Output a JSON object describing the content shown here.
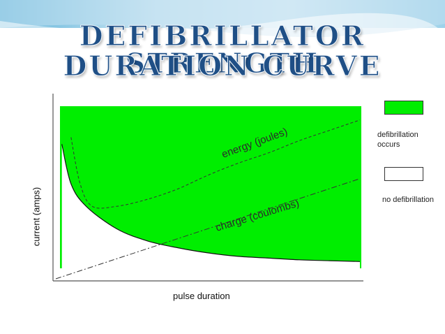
{
  "title": {
    "line1": "DEFIBRILLATOR STRENGTH",
    "line2": "DURATION CURVE"
  },
  "chart_data": {
    "type": "area",
    "xlabel": "pulse duration",
    "ylabel": "current (amps)",
    "region_fill": "#00ee00",
    "curves": [
      {
        "name": "strength-duration",
        "style": "solid",
        "x": [
          0.02,
          0.05,
          0.1,
          0.2,
          0.3,
          0.4,
          0.5,
          0.6,
          0.7,
          0.8,
          0.9,
          1.0
        ],
        "y": [
          0.78,
          0.55,
          0.42,
          0.29,
          0.22,
          0.18,
          0.15,
          0.13,
          0.12,
          0.11,
          0.105,
          0.1
        ]
      },
      {
        "name": "energy",
        "label": "energy (joules)",
        "style": "dashed",
        "x": [
          0.05,
          0.08,
          0.12,
          0.2,
          0.3,
          0.4,
          0.5,
          0.6,
          0.7,
          0.8,
          0.9,
          1.0
        ],
        "y": [
          0.82,
          0.55,
          0.42,
          0.42,
          0.46,
          0.52,
          0.6,
          0.67,
          0.73,
          0.8,
          0.86,
          0.92
        ]
      },
      {
        "name": "charge",
        "label": "charge (coulombs)",
        "style": "dash-dot",
        "x": [
          0.0,
          1.0
        ],
        "y": [
          0.0,
          0.58
        ]
      }
    ],
    "legend": [
      {
        "label": "defibrillation occurs",
        "line1": "defibrillation",
        "line2": "occurs",
        "color": "#00ee00"
      },
      {
        "label": "no defibrillation",
        "color": "#ffffff"
      }
    ],
    "legend_position": "right"
  }
}
